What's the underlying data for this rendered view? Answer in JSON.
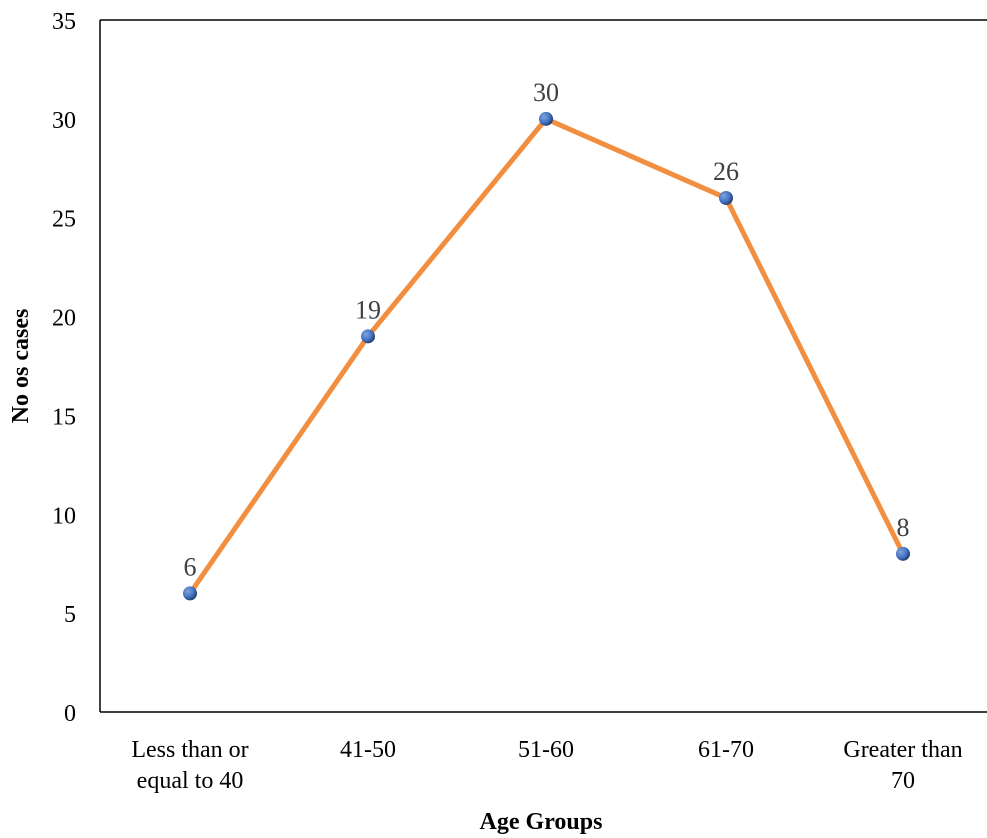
{
  "chart_data": {
    "type": "line",
    "categories": [
      [
        "Less than or",
        "equal to 40"
      ],
      [
        "41-50"
      ],
      [
        "51-60"
      ],
      [
        "61-70"
      ],
      [
        "Greater than",
        "70"
      ]
    ],
    "values": [
      6,
      19,
      30,
      26,
      8
    ],
    "data_labels": [
      "6",
      "19",
      "30",
      "26",
      "8"
    ],
    "title": "",
    "xlabel": "Age Groups",
    "ylabel": "No os cases",
    "ylim": [
      0,
      35
    ],
    "yticks": [
      "0",
      "5",
      "10",
      "15",
      "20",
      "25",
      "30",
      "35"
    ],
    "grid": false,
    "legend": "none",
    "line_color": "#F28E3F",
    "marker_color": "#4472C4"
  }
}
